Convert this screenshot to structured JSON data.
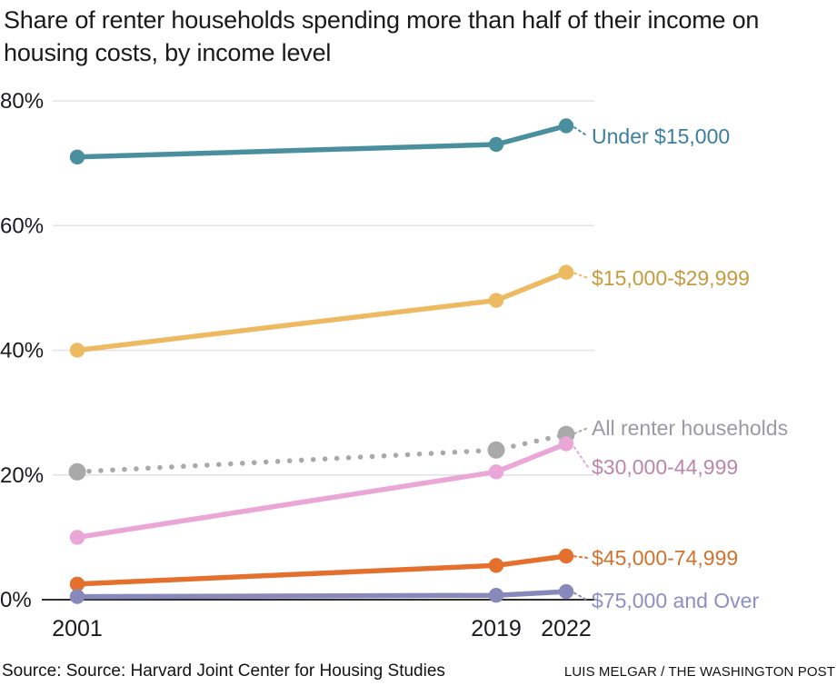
{
  "title": "Share of renter households spending more than half of their income on housing costs, by income level",
  "source": "Source: Source: Harvard Joint Center for Housing Studies",
  "credit": "LUIS MELGAR / THE WASHINGTON POST",
  "chart_data": {
    "type": "line",
    "title": "Share of renter households spending more than half of their income on housing costs, by income level",
    "x": [
      2001,
      2019,
      2022
    ],
    "x_tick_labels": [
      "2001",
      "2019",
      "2022"
    ],
    "y_tick_labels": [
      "80%",
      "60%",
      "40%",
      "20%",
      "0%"
    ],
    "y_tick_values": [
      80,
      60,
      40,
      20,
      0
    ],
    "ylim": [
      0,
      80
    ],
    "grid": true,
    "legend_position": "right-inline-labels",
    "series": [
      {
        "name": "Under $15,000",
        "values": [
          71,
          73,
          76
        ],
        "color": "#4A8F9D",
        "label_color": "#3E7E9D",
        "style": "solid"
      },
      {
        "name": "$15,000-$29,999",
        "values": [
          40,
          48,
          52.5
        ],
        "color": "#EDBA62",
        "label_color": "#C59A40",
        "style": "solid"
      },
      {
        "name": "All renter households",
        "values": [
          20.5,
          24,
          26.5
        ],
        "color": "#A9A9A9",
        "label_color": "#9A9AA2",
        "style": "dotted"
      },
      {
        "name": "$30,000-44,999",
        "values": [
          10,
          20.5,
          25
        ],
        "color": "#EBA6D8",
        "label_color": "#BC86AC",
        "style": "solid"
      },
      {
        "name": "$45,000-74,999",
        "values": [
          2.5,
          5.5,
          7
        ],
        "color": "#E5702D",
        "label_color": "#D0722E",
        "style": "solid"
      },
      {
        "name": "$75,000 and Over",
        "values": [
          0.5,
          0.7,
          1.3
        ],
        "color": "#8689BA",
        "label_color": "#8B8FC4",
        "style": "solid"
      }
    ],
    "axis_color": "#2F2F2F",
    "gridline_color": "#E2E2E2",
    "tick_label_color": "#1B1B1F"
  }
}
